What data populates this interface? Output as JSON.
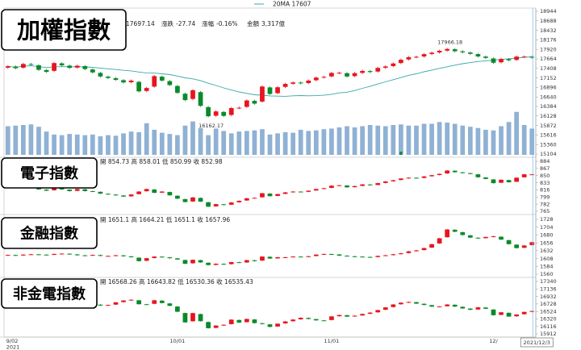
{
  "chart_data": {
    "type": "candlestick",
    "legend": {
      "ma_label": "20MA 17607"
    },
    "x_axis": {
      "tick_labels": [
        "9/02\n2021",
        "10/01",
        "11/01",
        "12/"
      ],
      "cursor_label": "2021/12/3"
    },
    "colors": {
      "up": "#e8141e",
      "down": "#0a8a2a",
      "volume": "#8fb1d4",
      "ma": "#3aa8a8",
      "cursor": "#7fc2e8"
    },
    "panels": [
      {
        "title": "加權指數",
        "info": {
          "close": "17697.14",
          "change_label": "漲跌",
          "change": "-27.74",
          "pct_label": "漲幅",
          "pct": "-0.16%",
          "amount_label": "金額",
          "amount": "3,317億"
        },
        "y_ticks": [
          "18944",
          "18688",
          "18432",
          "18176",
          "17920",
          "17664",
          "17408",
          "17152",
          "16896",
          "16640",
          "16384",
          "16128",
          "15872",
          "15616",
          "15360",
          "15104"
        ],
        "ylim": [
          15104,
          18944
        ],
        "annotations": {
          "high": "17966.18",
          "low": "16162.17"
        },
        "volume_scale_max": 1000,
        "closes": [
          17465,
          17413,
          17527,
          17508,
          17370,
          17314,
          17551,
          17490,
          17422,
          17479,
          17390,
          17300,
          17190,
          17150,
          17100,
          17030,
          17080,
          16790,
          16880,
          17200,
          17080,
          16960,
          16750,
          16555,
          16820,
          16400,
          16120,
          16250,
          16130,
          16340,
          16350,
          16545,
          16460,
          16920,
          16720,
          16900,
          16990,
          17030,
          17005,
          17080,
          17160,
          17180,
          17285,
          17290,
          17190,
          17280,
          17340,
          17310,
          17420,
          17460,
          17540,
          17640,
          17710,
          17720,
          17790,
          17830,
          17880,
          17930,
          17870,
          17840,
          17800,
          17730,
          17690,
          17560,
          17660,
          17625,
          17724,
          17725,
          17697
        ],
        "volumes": [
          480,
          490,
          500,
          510,
          470,
          390,
          340,
          330,
          350,
          340,
          330,
          340,
          310,
          330,
          320,
          360,
          390,
          380,
          530,
          420,
          370,
          350,
          330,
          490,
          560,
          450,
          330,
          440,
          400,
          360,
          390,
          400,
          410,
          430,
          340,
          360,
          380,
          370,
          420,
          400,
          410,
          430,
          440,
          460,
          480,
          460,
          480,
          500,
          490,
          480,
          500,
          510,
          490,
          490,
          520,
          520,
          550,
          540,
          520,
          490,
          470,
          450,
          420,
          410,
          480,
          550,
          720,
          500,
          440
        ]
      },
      {
        "title": "電子指數",
        "info": "開 854.73 高 858.01 低 850.99 收 852.98",
        "y_ticks": [
          "884",
          "867",
          "850",
          "833",
          "816",
          "799",
          "782",
          "765"
        ],
        "ylim": [
          765,
          884
        ],
        "closes": [
          827,
          822,
          835,
          826,
          817,
          814,
          822,
          817,
          813,
          818,
          813,
          812,
          807,
          805,
          803,
          800,
          805,
          812,
          818,
          809,
          812,
          803,
          795,
          787,
          798,
          788,
          776,
          782,
          780,
          786,
          790,
          796,
          797,
          808,
          801,
          806,
          810,
          812,
          811,
          814,
          818,
          820,
          826,
          827,
          822,
          825,
          829,
          827,
          832,
          836,
          839,
          843,
          845,
          844,
          848,
          851,
          854,
          862,
          858,
          856,
          854,
          846,
          842,
          832,
          840,
          834,
          845,
          853,
          853
        ]
      },
      {
        "title": "金融指數",
        "info": "開 1651.1 高 1664.21 低 1651.1 收 1657.96",
        "y_ticks": [
          "1728",
          "1704",
          "1680",
          "1656",
          "1632",
          "1608",
          "1584",
          "1560"
        ],
        "ylim": [
          1560,
          1728
        ],
        "closes": [
          1619,
          1617,
          1620,
          1621,
          1620,
          1619,
          1622,
          1623,
          1621,
          1618,
          1617,
          1619,
          1616,
          1616,
          1618,
          1615,
          1612,
          1600,
          1609,
          1614,
          1612,
          1609,
          1605,
          1592,
          1604,
          1596,
          1588,
          1592,
          1590,
          1597,
          1595,
          1603,
          1600,
          1614,
          1608,
          1612,
          1612,
          1614,
          1613,
          1615,
          1620,
          1622,
          1621,
          1617,
          1615,
          1614,
          1613,
          1612,
          1616,
          1618,
          1621,
          1624,
          1630,
          1633,
          1640,
          1652,
          1670,
          1697,
          1690,
          1680,
          1672,
          1670,
          1674,
          1676,
          1666,
          1652,
          1640,
          1648,
          1658
        ]
      },
      {
        "title": "非金電指數",
        "info": "開 16568.26 高 16643.82 低 16530.36 收 16535.43",
        "y_ticks": [
          "17340",
          "17136",
          "16932",
          "16728",
          "16524",
          "16320",
          "16116",
          "15912"
        ],
        "ylim": [
          15912,
          17340
        ],
        "closes": [
          16895,
          16839,
          16945,
          16925,
          16795,
          16754,
          16926,
          16880,
          16828,
          16861,
          16794,
          16712,
          16683,
          16700,
          16771,
          16821,
          16842,
          16720,
          16718,
          16827,
          16751,
          16676,
          16515,
          16225,
          16478,
          16258,
          16067,
          16139,
          16160,
          16300,
          16220,
          16318,
          16205,
          16180,
          16102,
          16189,
          16250,
          16302,
          16350,
          16318,
          16280,
          16276,
          16388,
          16426,
          16382,
          16407,
          16454,
          16491,
          16560,
          16633,
          16713,
          16762,
          16781,
          16736,
          16700,
          16654,
          16658,
          16712,
          16655,
          16605,
          16568,
          16635,
          16596,
          16420,
          16500,
          16384,
          16439,
          16510,
          16535
        ]
      }
    ]
  }
}
